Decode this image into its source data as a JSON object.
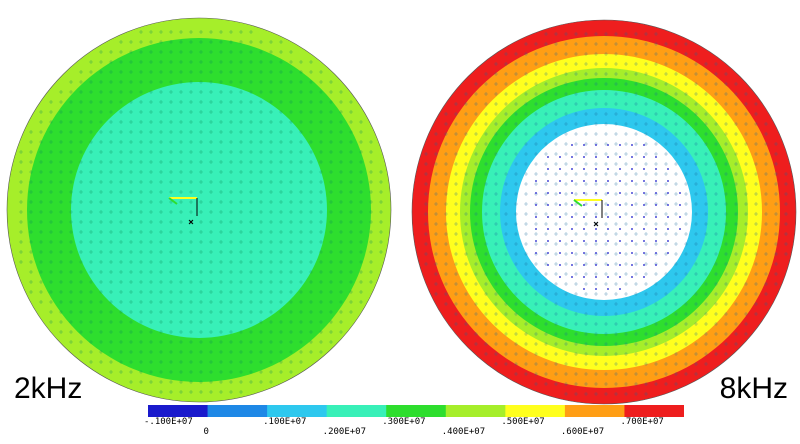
{
  "frequency_labels": {
    "left": "2kHz",
    "right": "8kHz"
  },
  "legend": {
    "colors": [
      "#1a1acc",
      "#1e88e6",
      "#2ec8ee",
      "#38f0b8",
      "#2ede2e",
      "#a6ee2a",
      "#ffff1e",
      "#ff9e14",
      "#ee1e1e"
    ],
    "tick_labels": [
      "-.100E+07",
      "0",
      ".100E+07",
      ".200E+07",
      ".300E+07",
      ".400E+07",
      ".500E+07",
      ".600E+07",
      ".700E+07"
    ]
  },
  "plots": [
    {
      "name": "2kHz",
      "rings": [
        {
          "color": "#a6ee2a"
        },
        {
          "color": "#2ede2e"
        },
        {
          "color": "#38f0b8"
        }
      ]
    },
    {
      "name": "8kHz",
      "rings": [
        {
          "color": "#ee1e1e"
        },
        {
          "color": "#ff9e14"
        },
        {
          "color": "#ffff1e"
        },
        {
          "color": "#a6ee2a"
        },
        {
          "color": "#2ede2e"
        },
        {
          "color": "#38f0b8"
        },
        {
          "color": "#2ec8ee"
        }
      ]
    }
  ]
}
